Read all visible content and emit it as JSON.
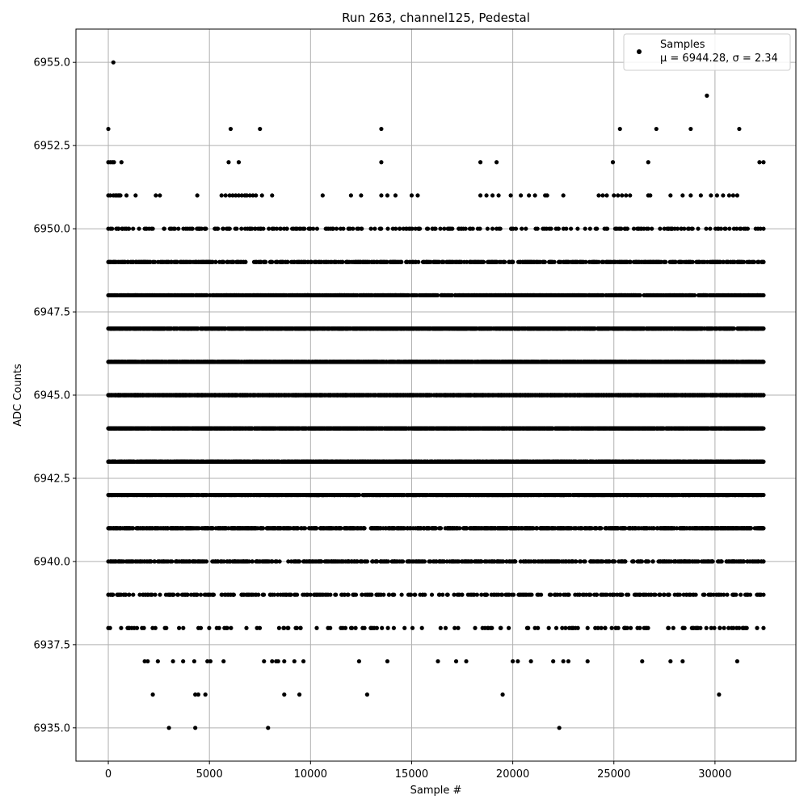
{
  "chart_data": {
    "type": "scatter",
    "title": "Run 263, channel125, Pedestal",
    "xlabel": "Sample #",
    "ylabel": "ADC Counts",
    "xlim": [
      -1600,
      34000
    ],
    "ylim": [
      6934.0,
      6956.0
    ],
    "xticks": [
      0,
      5000,
      10000,
      15000,
      20000,
      25000,
      30000
    ],
    "xtick_labels": [
      "0",
      "5000",
      "10000",
      "15000",
      "20000",
      "25000",
      "30000"
    ],
    "yticks": [
      6935.0,
      6937.5,
      6940.0,
      6942.5,
      6945.0,
      6947.5,
      6950.0,
      6952.5,
      6955.0
    ],
    "ytick_labels": [
      "6935.0",
      "6937.5",
      "6940.0",
      "6942.5",
      "6945.0",
      "6947.5",
      "6950.0",
      "6952.5",
      "6955.0"
    ],
    "grid": true,
    "legend_position": "top-right",
    "marker_color": "#000000",
    "series": [
      {
        "name": "Samples",
        "stats_label": "μ = 6944.28, σ = 2.34",
        "x_range": [
          0,
          32400
        ],
        "levels": [
          {
            "y": 6935,
            "x": [
              3000,
              4300,
              7900,
              22300
            ]
          },
          {
            "y": 6936,
            "x": [
              2200,
              4300,
              4450,
              4800,
              8700,
              9450,
              12800,
              19500,
              30200
            ]
          },
          {
            "y": 6937,
            "x": [
              1800,
              1950,
              2450,
              3200,
              3700,
              4250,
              4900,
              5050,
              5700,
              7700,
              8100,
              8300,
              8400,
              8700,
              9200,
              9650,
              12400,
              13800,
              16300,
              17200,
              17700,
              20000,
              20250,
              20900,
              22000,
              22500,
              22750,
              23700,
              26400,
              27800,
              28400,
              31100
            ]
          },
          {
            "y": 6951,
            "x": [
              0,
              100,
              250,
              350,
              420,
              500,
              550,
              600,
              900,
              1350,
              2350,
              2550,
              4400,
              5600,
              5800,
              6000,
              6150,
              6300,
              6450,
              6600,
              6750,
              6850,
              7000,
              7150,
              7300,
              7600,
              8100,
              10600,
              12000,
              12500,
              13500,
              13800,
              14200,
              15000,
              15300,
              18400,
              18700,
              19000,
              19300,
              19900,
              20400,
              20800,
              21100,
              21600,
              21700,
              22500,
              24250,
              24450,
              24650,
              25000,
              25200,
              25400,
              25600,
              25800,
              26700,
              26800,
              27800,
              28400,
              28800,
              29300,
              29800,
              30100,
              30400,
              30700,
              30900,
              31100
            ]
          },
          {
            "y": 6952,
            "x": [
              0,
              100,
              200,
              280,
              650,
              5950,
              6450,
              13500,
              18400,
              19200,
              24950,
              26700,
              32200,
              32400
            ]
          },
          {
            "y": 6953,
            "x": [
              0,
              6050,
              7500,
              13500,
              25300,
              27100,
              28800,
              31200
            ]
          },
          {
            "y": 6954,
            "x": [
              29600
            ]
          },
          {
            "y": 6955,
            "x": [
              250
            ]
          }
        ]
      }
    ]
  }
}
